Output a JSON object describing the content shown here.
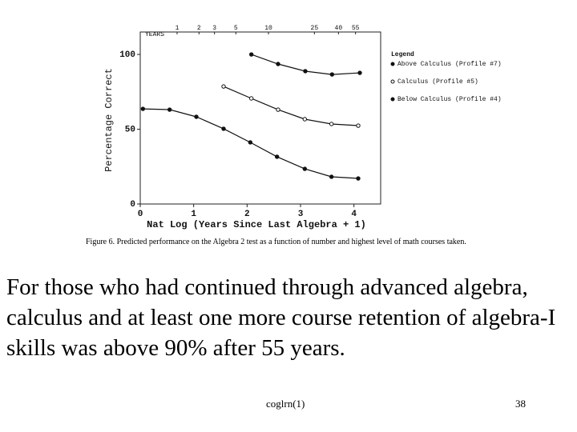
{
  "chart_data": {
    "type": "line",
    "ylabel": "Percentage Correct",
    "xlabel": "Nat Log (Years Since Last Algebra + 1)",
    "x2label": "YEARS",
    "legend_title": "Legend",
    "legend": "right",
    "xlim": [
      0,
      4.5
    ],
    "xticks": [
      0,
      1,
      2,
      3,
      4
    ],
    "ylim": [
      0,
      115
    ],
    "yticks": [
      0,
      50,
      100
    ],
    "x2ticks": [
      {
        "value": 0.69,
        "label": "1"
      },
      {
        "value": 1.1,
        "label": "2"
      },
      {
        "value": 1.39,
        "label": "3"
      },
      {
        "value": 1.79,
        "label": "5"
      },
      {
        "value": 2.4,
        "label": "10"
      },
      {
        "value": 3.26,
        "label": "25"
      },
      {
        "value": 3.71,
        "label": "40"
      },
      {
        "value": 4.03,
        "label": "55"
      }
    ],
    "series": [
      {
        "name": "Above Calculus (Profile #7)",
        "color": "#111111",
        "marker": "filled",
        "x": [
          2.08,
          2.58,
          3.09,
          3.59,
          4.11
        ],
        "values": [
          100,
          93.6,
          88.8,
          86.6,
          87.7
        ]
      },
      {
        "name": "Calculus (Profile #5)",
        "color": "#111111",
        "marker": "open",
        "x": [
          1.56,
          2.08,
          2.58,
          3.08,
          3.58,
          4.08
        ],
        "values": [
          78.6,
          70.6,
          63.1,
          56.7,
          53.5,
          52.4
        ]
      },
      {
        "name": "Below Calculus (Profile #4)",
        "color": "#111111",
        "marker": "filled",
        "x": [
          0.05,
          0.55,
          1.05,
          1.56,
          2.06,
          2.56,
          3.08,
          3.58,
          4.08
        ],
        "values": [
          63.6,
          63.1,
          58.3,
          50.3,
          41.2,
          31.6,
          23.5,
          18.2,
          17.1
        ]
      }
    ]
  },
  "caption": "Figure 6. Predicted performance on the Algebra 2 test as a function of number and highest level of math courses taken.",
  "body_text": "For those who had continued through advanced algebra, calculus and at least one more course retention of algebra-I skills was above 90% after 55 years.",
  "footer": "coglrn(1)",
  "page_number": "38"
}
